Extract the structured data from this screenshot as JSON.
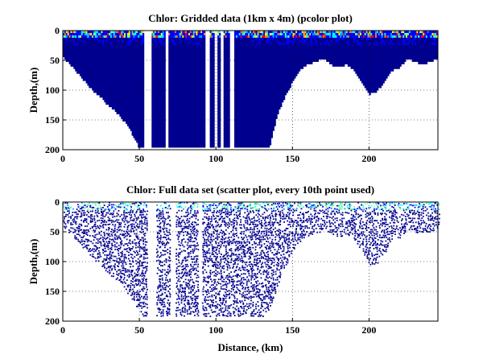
{
  "chart_data": [
    {
      "type": "heatmap",
      "title": "Chlor: Gridded data (1km x 4m) (pcolor plot)",
      "xlabel": "",
      "ylabel": "Depth,(m)",
      "xlim": [
        0,
        245
      ],
      "ylim": [
        200,
        0
      ],
      "y_reversed": true,
      "xticks": [
        0,
        50,
        100,
        150,
        200
      ],
      "yticks": [
        0,
        50,
        100,
        150,
        200
      ],
      "grid": true,
      "colormap": [
        "#00008f",
        "#0000ff",
        "#00a0ff",
        "#00ffff",
        "#80ff80",
        "#ffff00",
        "#ff8000",
        "#ff0000"
      ],
      "bottom_depth_profile": {
        "x": [
          0,
          5,
          10,
          15,
          20,
          25,
          30,
          35,
          40,
          45,
          50,
          55,
          60,
          65,
          70,
          75,
          80,
          85,
          90,
          95,
          100,
          105,
          110,
          115,
          120,
          125,
          130,
          135,
          140,
          145,
          150,
          155,
          160,
          165,
          170,
          175,
          180,
          185,
          190,
          195,
          200,
          205,
          210,
          215,
          220,
          225,
          230,
          235,
          240,
          245
        ],
        "depth": [
          42,
          55,
          70,
          85,
          100,
          110,
          125,
          135,
          150,
          170,
          195,
          195,
          195,
          195,
          195,
          195,
          195,
          195,
          195,
          195,
          195,
          195,
          195,
          195,
          195,
          195,
          195,
          195,
          140,
          110,
          85,
          65,
          55,
          50,
          45,
          55,
          60,
          55,
          65,
          85,
          105,
          100,
          85,
          65,
          60,
          45,
          50,
          55,
          50,
          45
        ]
      },
      "surface_high_chlorophyll_depth_m": 12,
      "data_gaps_km": [
        [
          53,
          57
        ],
        [
          67,
          68
        ],
        [
          93,
          95
        ],
        [
          99,
          100
        ],
        [
          103,
          104
        ],
        [
          109,
          111
        ]
      ]
    },
    {
      "type": "scatter",
      "title": "Chlor: Full data set (scatter plot, every 10th point used)",
      "xlabel": "Distance, (km)",
      "ylabel": "Depth,(m)",
      "xlim": [
        0,
        245
      ],
      "ylim": [
        200,
        0
      ],
      "y_reversed": true,
      "xticks": [
        0,
        50,
        100,
        150,
        200
      ],
      "yticks": [
        0,
        50,
        100,
        150,
        200
      ],
      "grid": true,
      "marker_color": "#00008f",
      "bottom_depth_profile": {
        "x": [
          0,
          5,
          10,
          15,
          20,
          25,
          30,
          35,
          40,
          45,
          50,
          55,
          60,
          65,
          70,
          75,
          80,
          85,
          90,
          95,
          100,
          105,
          110,
          115,
          120,
          125,
          130,
          135,
          140,
          145,
          150,
          155,
          160,
          165,
          170,
          175,
          180,
          185,
          190,
          195,
          200,
          205,
          210,
          215,
          220,
          225,
          230,
          235,
          240,
          245
        ],
        "depth": [
          40,
          52,
          68,
          80,
          95,
          105,
          120,
          130,
          145,
          165,
          190,
          190,
          190,
          190,
          190,
          190,
          190,
          190,
          190,
          190,
          190,
          190,
          190,
          190,
          190,
          190,
          190,
          175,
          135,
          105,
          80,
          62,
          55,
          50,
          45,
          52,
          58,
          52,
          62,
          82,
          105,
          100,
          82,
          62,
          58,
          45,
          48,
          52,
          48,
          40
        ]
      },
      "surface_high_chlorophyll_depth_m": 12,
      "data_gaps_km": [
        [
          55,
          60
        ],
        [
          70,
          73
        ],
        [
          88,
          90
        ]
      ]
    }
  ]
}
